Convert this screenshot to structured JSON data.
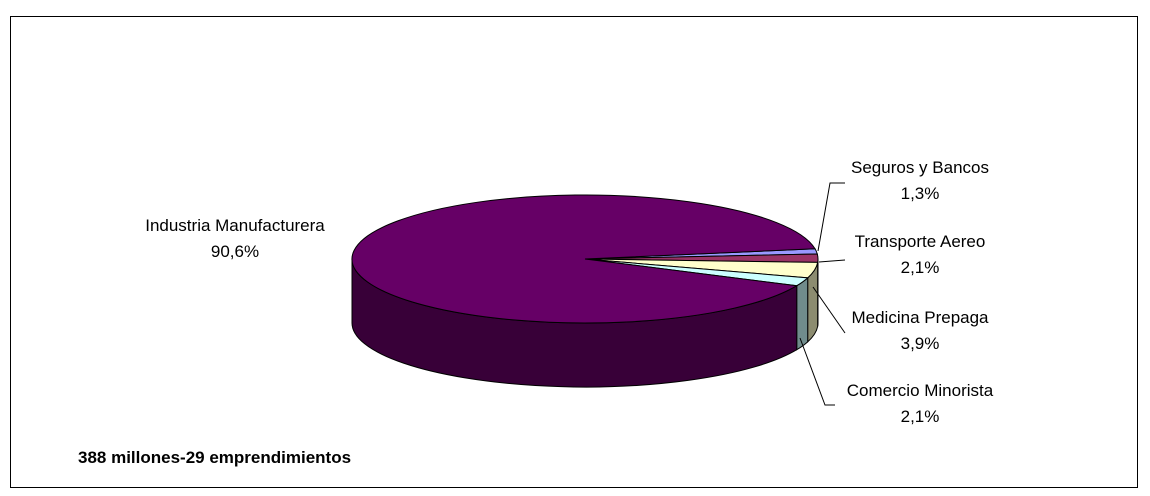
{
  "chart_data": {
    "type": "pie",
    "style": "3d",
    "title": "",
    "note": "388 millones-29 emprendimientos",
    "slices": [
      {
        "name": "Industria Manufacturera",
        "value": 90.6,
        "label": "90,6%",
        "color": "#660066"
      },
      {
        "name": "Seguros y Bancos",
        "value": 1.3,
        "label": "1,3%",
        "color": "#9999ff"
      },
      {
        "name": "Transporte Aereo",
        "value": 2.1,
        "label": "2,1%",
        "color": "#993366"
      },
      {
        "name": "Medicina Prepaga",
        "value": 3.9,
        "label": "3,9%",
        "color": "#ffffcc"
      },
      {
        "name": "Comercio Minorista",
        "value": 2.1,
        "label": "2,1%",
        "color": "#ccffff"
      }
    ],
    "legend": "none"
  }
}
